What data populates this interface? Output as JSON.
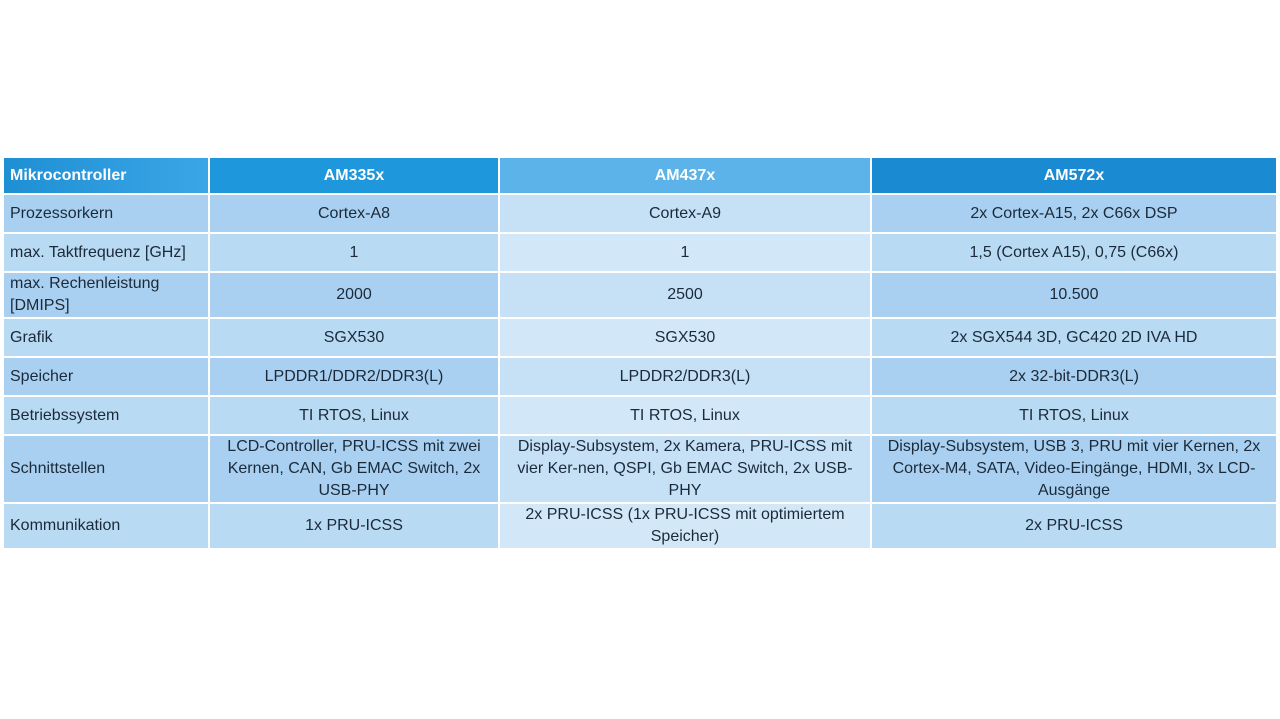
{
  "table": {
    "headers": [
      "Mikrocontroller",
      "AM335x",
      "AM437x",
      "AM572x"
    ],
    "rows": [
      [
        "Prozessorkern",
        "Cortex-A8",
        "Cortex-A9",
        "2x Cortex-A15, 2x C66x DSP"
      ],
      [
        "max. Taktfrequenz [GHz]",
        "1",
        "1",
        "1,5 (Cortex A15), 0,75 (C66x)"
      ],
      [
        "max. Rechenleistung [DMIPS]",
        "2000",
        "2500",
        "10.500"
      ],
      [
        "Grafik",
        "SGX530",
        "SGX530",
        "2x SGX544 3D, GC420 2D IVA HD"
      ],
      [
        "Speicher",
        "LPDDR1/DDR2/DDR3(L)",
        "LPDDR2/DDR3(L)",
        "2x 32-bit-DDR3(L)"
      ],
      [
        "Betriebssystem",
        "TI RTOS, Linux",
        "TI RTOS, Linux",
        "TI RTOS, Linux"
      ],
      [
        "Schnittstellen",
        "LCD-Controller, PRU-ICSS mit zwei Kernen, CAN, Gb EMAC Switch, 2x USB-PHY",
        "Display-Subsystem, 2x Kamera, PRU-ICSS mit vier Ker-nen, QSPI, Gb EMAC Switch, 2x USB-PHY",
        "Display-Subsystem, USB 3, PRU mit vier Kernen, 2x Cortex-M4, SATA, Video-Eingänge, HDMI, 3x LCD-Ausgänge"
      ],
      [
        "Kommunikation",
        "1x PRU-ICSS",
        "2x PRU-ICSS (1x PRU-ICSS mit optimiertem Speicher)",
        "2x PRU-ICSS"
      ]
    ]
  },
  "colors": {
    "header_accent": "#1e97dc",
    "header_light": "#5cb3ea",
    "row_fill": "#a9d0f0",
    "row_fill_light": "#c6e1f6"
  }
}
